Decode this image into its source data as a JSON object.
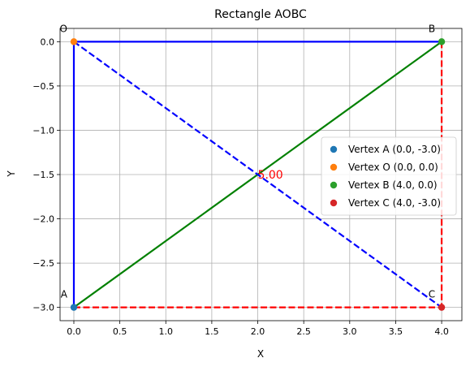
{
  "chart_data": {
    "type": "scatter",
    "title": "Rectangle AOBC",
    "xlabel": "X",
    "ylabel": "Y",
    "xlim": [
      -0.15,
      4.22
    ],
    "ylim": [
      -3.15,
      0.15
    ],
    "xticks": [
      0.0,
      0.5,
      1.0,
      1.5,
      2.0,
      2.5,
      3.0,
      3.5,
      4.0
    ],
    "yticks": [
      0.0,
      -0.5,
      -1.0,
      -1.5,
      -2.0,
      -2.5,
      -3.0
    ],
    "xtick_labels": [
      "0.0",
      "0.5",
      "1.0",
      "1.5",
      "2.0",
      "2.5",
      "3.0",
      "3.5",
      "4.0"
    ],
    "ytick_labels": [
      "0.0",
      "−0.5",
      "−1.0",
      "−1.5",
      "−2.0",
      "−2.5",
      "−3.0"
    ],
    "grid": true,
    "legend_position": "center-right",
    "series": [
      {
        "name": "Vertex A (0.0, -3.0)",
        "label": "A",
        "x": 0.0,
        "y": -3.0,
        "color": "#1f77b4"
      },
      {
        "name": "Vertex O (0.0, 0.0)",
        "label": "O",
        "x": 0.0,
        "y": 0.0,
        "color": "#ff7f0e"
      },
      {
        "name": "Vertex B (4.0, 0.0)",
        "label": "B",
        "x": 4.0,
        "y": 0.0,
        "color": "#2ca02c"
      },
      {
        "name": "Vertex C (4.0, -3.0)",
        "label": "C",
        "x": 4.0,
        "y": -3.0,
        "color": "#d62728"
      }
    ],
    "lines": [
      {
        "from": [
          0.0,
          0.0
        ],
        "to": [
          4.0,
          0.0
        ],
        "color": "#0000ff",
        "style": "solid"
      },
      {
        "from": [
          0.0,
          0.0
        ],
        "to": [
          0.0,
          -3.0
        ],
        "color": "#0000ff",
        "style": "solid"
      },
      {
        "from": [
          4.0,
          0.0
        ],
        "to": [
          4.0,
          -3.0
        ],
        "color": "#ff0000",
        "style": "dashed"
      },
      {
        "from": [
          0.0,
          -3.0
        ],
        "to": [
          4.0,
          -3.0
        ],
        "color": "#ff0000",
        "style": "dashed"
      },
      {
        "from": [
          0.0,
          -3.0
        ],
        "to": [
          4.0,
          0.0
        ],
        "color": "#008000",
        "style": "solid"
      },
      {
        "from": [
          0.0,
          0.0
        ],
        "to": [
          4.0,
          -3.0
        ],
        "color": "#0000ff",
        "style": "dashed"
      }
    ],
    "annotation": {
      "text": "5.00",
      "x": 2.0,
      "y": -1.5,
      "color": "#ff0000"
    }
  }
}
